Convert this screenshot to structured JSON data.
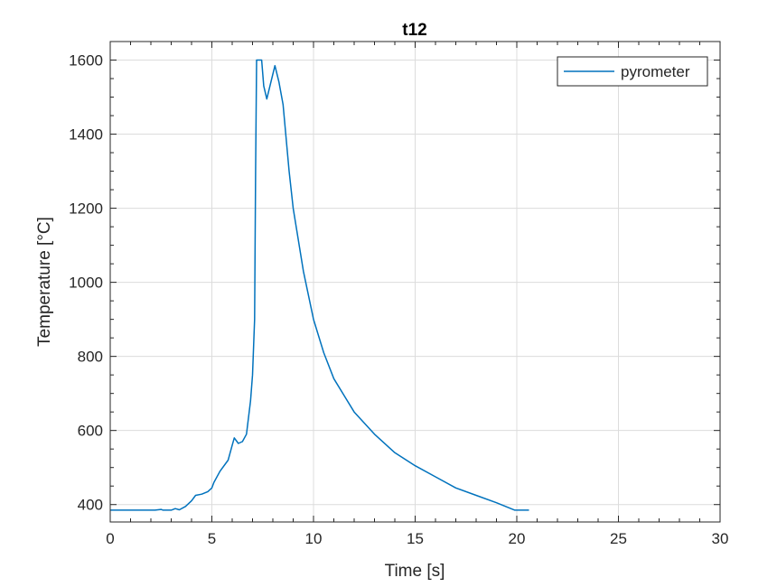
{
  "chart_data": {
    "type": "line",
    "title": "t12",
    "xlabel": "Time [s]",
    "ylabel": "Temperature [°C]",
    "xlim": [
      0,
      30
    ],
    "ylim": [
      353,
      1650
    ],
    "xticks": [
      0,
      5,
      10,
      15,
      20,
      25,
      30
    ],
    "yticks": [
      400,
      600,
      800,
      1000,
      1200,
      1400,
      1600
    ],
    "grid": true,
    "legend_position": "top-right",
    "series": [
      {
        "name": "pyrometer",
        "color": "#0072bd",
        "x": [
          0,
          2.2,
          2.5,
          2.6,
          3.0,
          3.2,
          3.4,
          3.7,
          4.0,
          4.2,
          4.5,
          4.8,
          5.0,
          5.1,
          5.4,
          5.8,
          6.0,
          6.1,
          6.3,
          6.5,
          6.7,
          6.9,
          7.0,
          7.1,
          7.15,
          7.2,
          7.45,
          7.55,
          7.7,
          7.9,
          8.1,
          8.3,
          8.5,
          8.8,
          9.0,
          9.5,
          10,
          10.5,
          11,
          12,
          13,
          14,
          15,
          16,
          17,
          18,
          19,
          19.9,
          20.6
        ],
        "y": [
          385,
          385,
          387,
          385,
          385,
          389,
          386,
          395,
          410,
          425,
          428,
          435,
          445,
          460,
          490,
          520,
          560,
          580,
          565,
          570,
          590,
          680,
          750,
          900,
          1300,
          1600,
          1600,
          1530,
          1495,
          1540,
          1585,
          1540,
          1480,
          1300,
          1200,
          1030,
          900,
          810,
          740,
          650,
          590,
          540,
          505,
          475,
          445,
          425,
          405,
          385,
          385
        ]
      }
    ]
  }
}
